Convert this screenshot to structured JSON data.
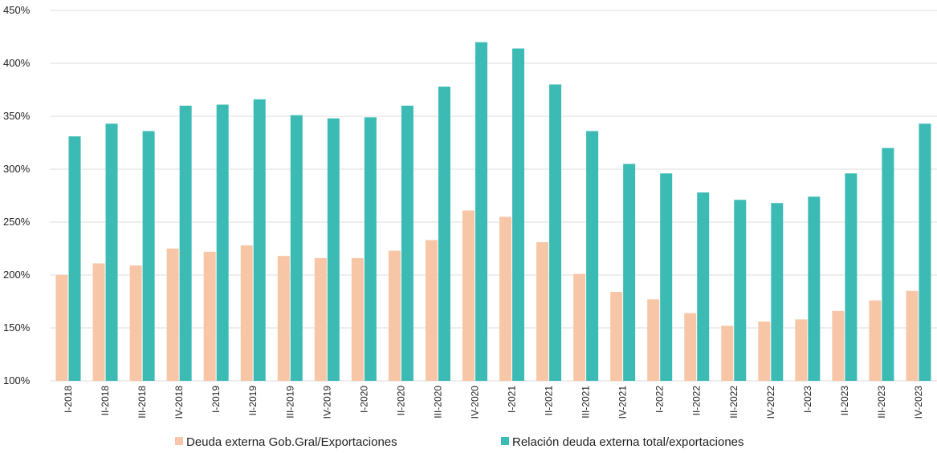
{
  "chart_data": {
    "type": "bar",
    "title": "",
    "xlabel": "",
    "ylabel": "",
    "ylim": [
      100,
      450
    ],
    "y_ticks": [
      "100%",
      "150%",
      "200%",
      "250%",
      "300%",
      "350%",
      "400%",
      "450%"
    ],
    "y_tick_values": [
      100,
      150,
      200,
      250,
      300,
      350,
      400,
      450
    ],
    "grid": true,
    "legend_position": "bottom",
    "categories": [
      "I-2018",
      "II-2018",
      "III-2018",
      "IV-2018",
      "I-2019",
      "II-2019",
      "III-2019",
      "IV-2019",
      "I-2020",
      "II-2020",
      "III-2020",
      "IV-2020",
      "I-2021",
      "II-2021",
      "III-2021",
      "IV-2021",
      "I-2022",
      "II-2022",
      "III-2022",
      "IV-2022",
      "I-2023",
      "II-2023",
      "III-2023",
      "IV-2023"
    ],
    "series": [
      {
        "name": "Deuda externa Gob.Gral/Exportaciones",
        "color": "#f7c6a6",
        "values": [
          200,
          211,
          209,
          225,
          222,
          228,
          218,
          216,
          216,
          223,
          233,
          261,
          255,
          231,
          201,
          184,
          177,
          164,
          152,
          156,
          158,
          166,
          176,
          185
        ]
      },
      {
        "name": "Relación deuda externa total/exportaciones",
        "color": "#3bbbb4",
        "values": [
          331,
          343,
          336,
          360,
          361,
          366,
          351,
          348,
          349,
          360,
          378,
          420,
          414,
          380,
          336,
          305,
          296,
          278,
          271,
          268,
          274,
          296,
          320,
          343
        ]
      }
    ]
  }
}
